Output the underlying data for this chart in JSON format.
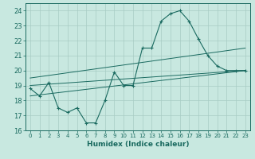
{
  "xlabel": "Humidex (Indice chaleur)",
  "xlim": [
    -0.5,
    23.5
  ],
  "ylim": [
    16,
    24.5
  ],
  "yticks": [
    16,
    17,
    18,
    19,
    20,
    21,
    22,
    23,
    24
  ],
  "xticks": [
    0,
    1,
    2,
    3,
    4,
    5,
    6,
    7,
    8,
    9,
    10,
    11,
    12,
    13,
    14,
    15,
    16,
    17,
    18,
    19,
    20,
    21,
    22,
    23
  ],
  "bg_color": "#c8e8e0",
  "grid_color": "#a8ccc4",
  "line_color": "#1a6a60",
  "main_series_x": [
    0,
    1,
    2,
    3,
    4,
    5,
    6,
    7,
    8,
    9,
    10,
    11,
    12,
    13,
    14,
    15,
    16,
    17,
    18,
    19,
    20,
    21,
    22,
    23
  ],
  "main_series_y": [
    18.8,
    18.3,
    19.2,
    17.5,
    17.2,
    17.5,
    16.5,
    16.5,
    18.0,
    19.9,
    19.0,
    19.0,
    21.5,
    21.5,
    23.3,
    23.8,
    24.0,
    23.3,
    22.1,
    21.0,
    20.3,
    20.0,
    20.0,
    20.0
  ],
  "line1_x": [
    0,
    23
  ],
  "line1_y": [
    19.0,
    20.0
  ],
  "line2_x": [
    0,
    23
  ],
  "line2_y": [
    19.5,
    21.5
  ],
  "line3_x": [
    0,
    23
  ],
  "line3_y": [
    18.3,
    20.0
  ]
}
